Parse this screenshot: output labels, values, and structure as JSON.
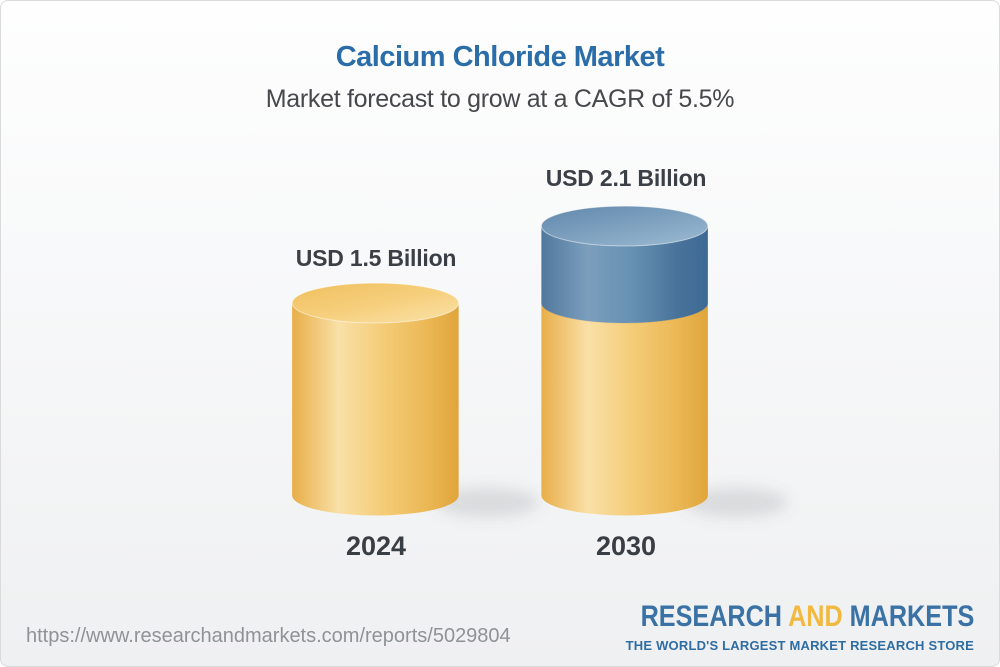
{
  "header": {
    "title": "Calcium Chloride Market",
    "subtitle": "Market forecast to grow at a CAGR of 5.5%"
  },
  "chart_data": {
    "type": "bar",
    "subtype": "3d-stacked-cylinder",
    "title": "Calcium Chloride Market",
    "unit": "USD Billion",
    "cagr": "5.5%",
    "categories": [
      "2024",
      "2030"
    ],
    "series": [
      {
        "name": "base-market-size",
        "colorKey": "gold",
        "values": [
          1.5,
          1.5
        ]
      },
      {
        "name": "forecast-growth",
        "colorKey": "blue",
        "values": [
          0,
          0.6
        ]
      }
    ],
    "totals": [
      1.5,
      2.1
    ],
    "bar_labels": [
      "USD 1.5 Billion",
      "USD 2.1 Billion"
    ],
    "ylim": [
      0,
      2.1
    ],
    "legend": "none",
    "grid": "off"
  },
  "footer": {
    "url": "https://www.researchandmarkets.com/reports/5029804",
    "logo": {
      "research": "RESEARCH",
      "and": "AND",
      "markets": "MARKETS",
      "tagline": "THE WORLD'S LARGEST MARKET RESEARCH STORE"
    }
  },
  "colors": {
    "title_blue": "#2A6DA8",
    "text_dark": "#3B3F46",
    "subtitle_gray": "#47484C",
    "url_gray": "#8F9296",
    "logo_blue": "#3A72A5",
    "logo_gold": "#F1B93F",
    "cylinder_gold": "#F4CC77",
    "cylinder_blue": "#6690B2"
  }
}
